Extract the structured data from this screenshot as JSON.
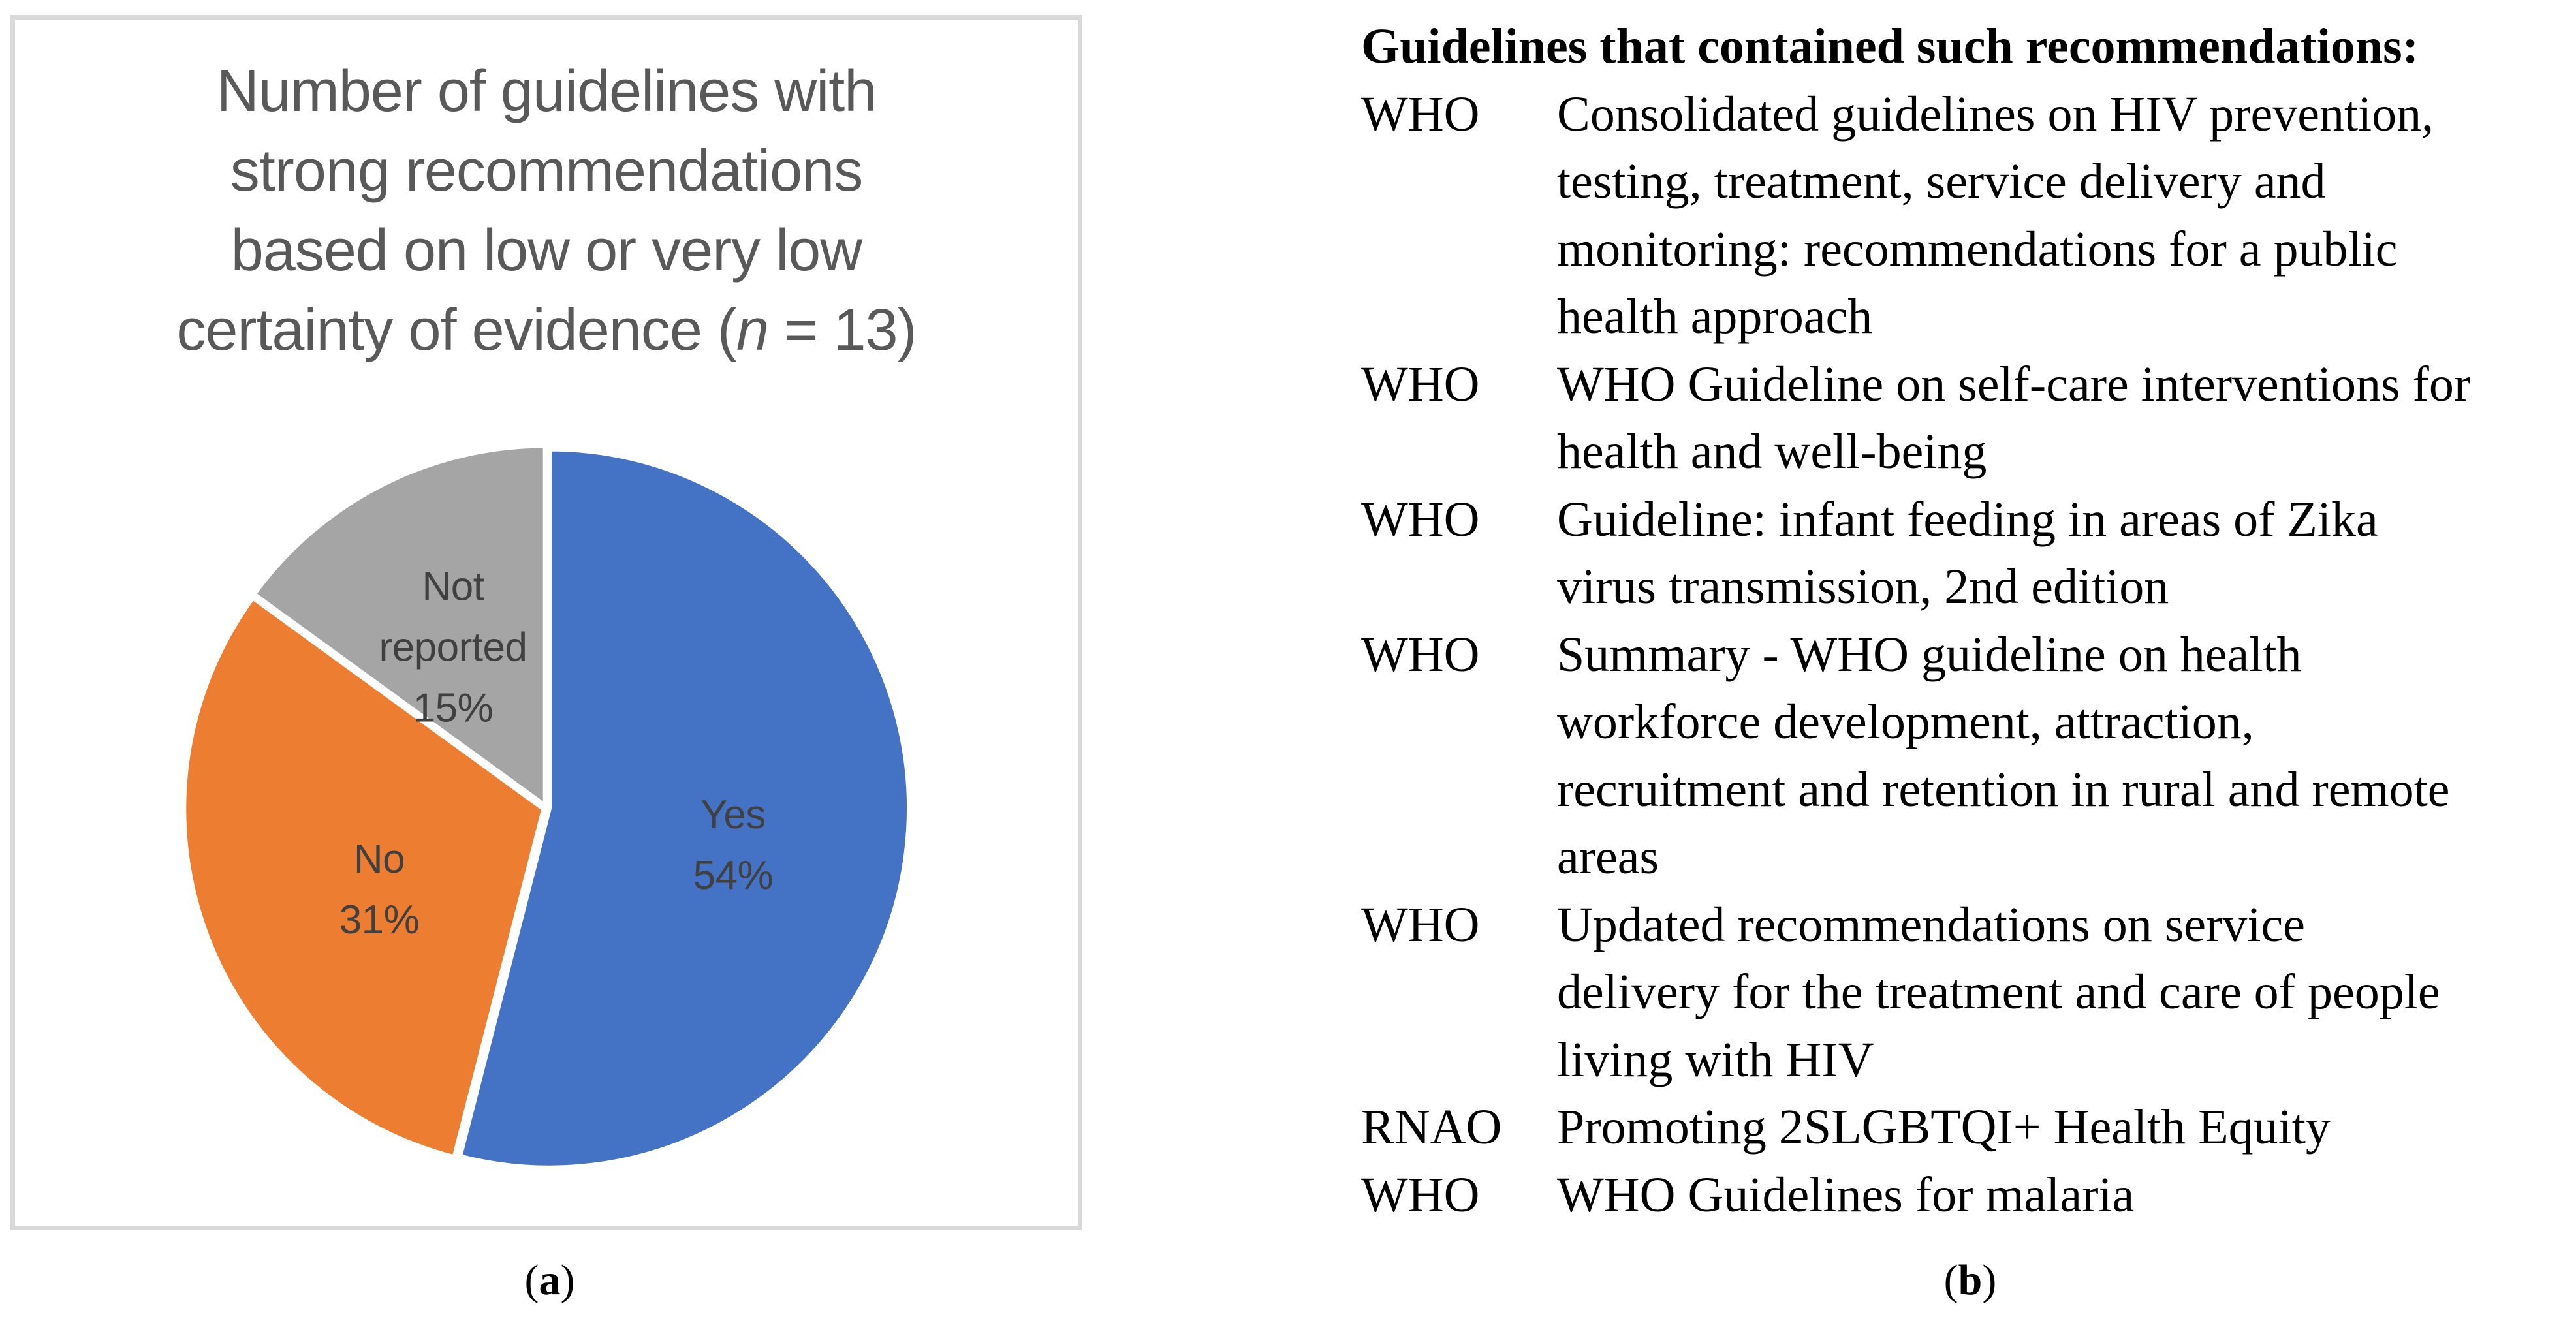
{
  "panel_a": {
    "caption": {
      "open": "(",
      "letter": "a",
      "close": ")"
    },
    "border_color": "#D9D9D9",
    "title_color": "#595959",
    "data_label_color": "#404040",
    "title_lines": [
      "Number of guidelines with",
      "strong recommendations",
      "based on low or very low"
    ],
    "title_last_line": {
      "pre": "certainty of evidence (",
      "italic": "n",
      "post": " = 13)"
    }
  },
  "panel_b": {
    "caption": {
      "open": "(",
      "letter": "b",
      "close": ")"
    },
    "header": "Guidelines that contained such recommendations:",
    "items": [
      {
        "org": "WHO",
        "lines": [
          "Consolidated guidelines on HIV prevention,",
          "testing, treatment, service delivery and",
          "monitoring: recommendations for a public",
          "health approach"
        ]
      },
      {
        "org": "WHO",
        "lines": [
          "WHO Guideline on self-care interventions for",
          "health and well-being"
        ]
      },
      {
        "org": "WHO",
        "lines": [
          "Guideline: infant feeding in areas of Zika",
          "virus transmission, 2nd edition"
        ]
      },
      {
        "org": "WHO",
        "lines": [
          "Summary - WHO guideline on health",
          "workforce development, attraction,",
          "recruitment and retention in rural and remote",
          "areas"
        ]
      },
      {
        "org": "WHO",
        "lines": [
          "Updated recommendations on service",
          "delivery for the treatment and care of people",
          "living with HIV"
        ]
      },
      {
        "org": "RNAO",
        "lines": [
          "Promoting 2SLGBTQI+ Health Equity"
        ]
      },
      {
        "org": "WHO",
        "lines": [
          "WHO Guidelines for malaria"
        ]
      }
    ]
  },
  "chart_data": {
    "type": "pie",
    "title": "Number of guidelines with strong recommendations based on low or very low certainty of evidence (n = 13)",
    "total_n": 13,
    "start_angle_deg": 0,
    "direction": "clockwise",
    "legend": "none",
    "data_labels": "category name and percentage inside slices",
    "slices": [
      {
        "label": "Yes",
        "pct": 54,
        "pct_label": "54%",
        "color": "#4472C4"
      },
      {
        "label": "No",
        "pct": 31,
        "pct_label": "31%",
        "color": "#ED7D31"
      },
      {
        "label": "Not reported",
        "pct": 15,
        "pct_label": "15%",
        "color": "#A5A5A5"
      }
    ]
  }
}
